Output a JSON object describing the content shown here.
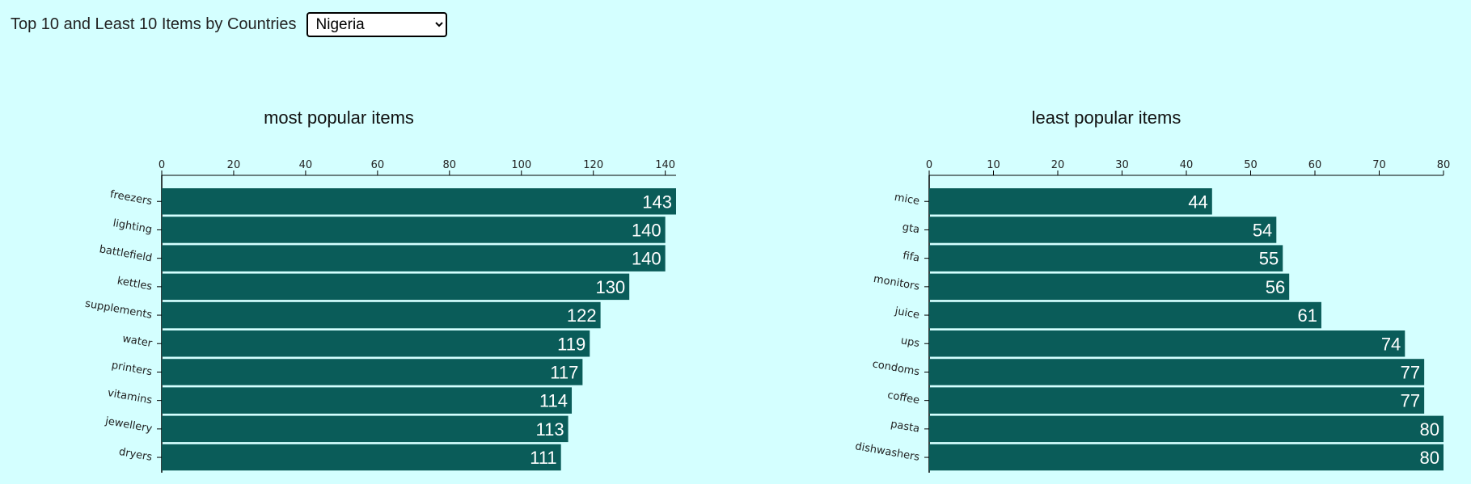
{
  "header": {
    "label": "Top 10 and Least 10 Items by Countries",
    "selected_country": "Nigeria"
  },
  "colors": {
    "background": "#d4ffff",
    "bar": "#0a5c59",
    "value_text": "#ffffff"
  },
  "chart_data": [
    {
      "type": "bar",
      "orientation": "horizontal",
      "title": "most popular items",
      "categories": [
        "freezers",
        "lighting",
        "battlefield",
        "kettles",
        "supplements",
        "water",
        "printers",
        "vitamins",
        "jewellery",
        "dryers"
      ],
      "values": [
        143,
        140,
        140,
        130,
        122,
        119,
        117,
        114,
        113,
        111
      ],
      "xlim": [
        0,
        143
      ],
      "xticks": [
        0,
        20,
        40,
        60,
        80,
        100,
        120,
        140
      ],
      "axis_position": "top",
      "grid": false
    },
    {
      "type": "bar",
      "orientation": "horizontal",
      "title": "least popular items",
      "categories": [
        "mice",
        "gta",
        "fifa",
        "monitors",
        "juice",
        "ups",
        "condoms",
        "coffee",
        "pasta",
        "dishwashers"
      ],
      "values": [
        44,
        54,
        55,
        56,
        61,
        74,
        77,
        77,
        80,
        80
      ],
      "xlim": [
        0,
        80
      ],
      "xticks": [
        0,
        10,
        20,
        30,
        40,
        50,
        60,
        70,
        80
      ],
      "axis_position": "top",
      "grid": false
    }
  ]
}
